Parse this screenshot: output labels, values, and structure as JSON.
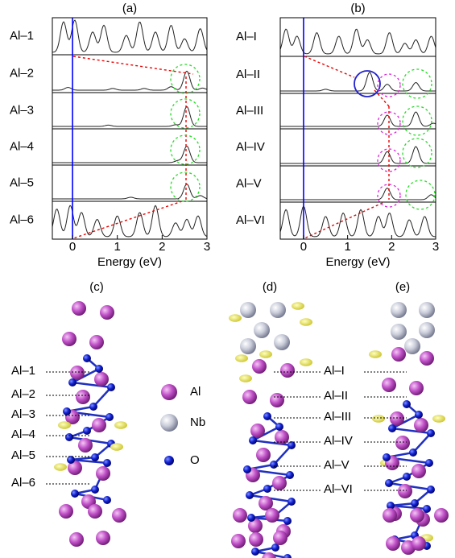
{
  "panels": [
    {
      "label": "(a)",
      "xlabel": "Energy (eV)",
      "xlim": [
        -0.45,
        3
      ],
      "xticks": [
        0,
        1,
        2,
        3
      ],
      "rows": [
        {
          "label": "Al–1",
          "energies": [
            -0.2,
            0.05,
            0.45,
            0.7,
            1.2,
            1.5,
            1.85,
            2.2,
            2.5,
            2.85
          ],
          "heights": [
            0.9,
            0.95,
            0.6,
            0.8,
            0.5,
            0.9,
            0.6,
            0.8,
            0.4,
            0.7
          ]
        },
        {
          "label": "Al–2",
          "energies": [
            -0.1,
            0.9,
            1.6,
            2.2,
            2.55,
            2.9
          ],
          "heights": [
            0.08,
            0.05,
            0.05,
            0.1,
            0.55,
            0.06
          ]
        },
        {
          "label": "Al–3",
          "energies": [
            0.8,
            2.3,
            2.55
          ],
          "heights": [
            0.04,
            0.05,
            0.6
          ]
        },
        {
          "label": "Al–4",
          "energies": [
            2.35,
            2.55
          ],
          "heights": [
            0.06,
            0.5
          ]
        },
        {
          "label": "Al–5",
          "energies": [
            1.3,
            2.55,
            2.85
          ],
          "heights": [
            0.05,
            0.45,
            0.1
          ]
        },
        {
          "label": "Al–6",
          "energies": [
            -0.35,
            -0.05,
            0.2,
            0.55,
            1.0,
            1.5,
            1.85,
            2.3,
            2.55,
            2.8
          ],
          "heights": [
            0.8,
            0.9,
            0.7,
            0.5,
            0.6,
            0.7,
            0.9,
            0.4,
            0.5,
            0.6
          ]
        }
      ]
    },
    {
      "label": "(b)",
      "xlabel": "Energy (eV)",
      "xlim": [
        -0.53,
        3
      ],
      "xticks": [
        0,
        1,
        2,
        3
      ],
      "rows": [
        {
          "label": "Al–I",
          "energies": [
            -0.4,
            -0.15,
            0.3,
            0.8,
            1.2,
            1.45,
            1.95,
            2.3,
            2.55,
            2.9
          ],
          "heights": [
            0.7,
            0.5,
            0.6,
            0.5,
            0.7,
            0.4,
            0.6,
            0.3,
            0.4,
            0.5
          ]
        },
        {
          "label": "Al–II",
          "energies": [
            0.5,
            1.5,
            1.9,
            2.55
          ],
          "heights": [
            0.05,
            0.55,
            0.2,
            0.25
          ]
        },
        {
          "label": "Al–III",
          "energies": [
            1.9,
            2.55,
            2.95
          ],
          "heights": [
            0.35,
            0.45,
            0.1
          ]
        },
        {
          "label": "Al–IV",
          "energies": [
            1.9,
            2.55
          ],
          "heights": [
            0.35,
            0.5
          ]
        },
        {
          "label": "Al–V",
          "energies": [
            1.9,
            2.9
          ],
          "heights": [
            0.35,
            0.15
          ]
        },
        {
          "label": "Al–VI",
          "energies": [
            -0.4,
            0,
            0.5,
            0.9,
            1.3,
            1.7,
            1.95,
            2.4,
            2.75
          ],
          "heights": [
            0.8,
            0.9,
            0.6,
            0.7,
            0.8,
            0.6,
            0.7,
            0.5,
            0.6
          ]
        }
      ]
    }
  ],
  "structures": [
    {
      "label": "(c)",
      "atom_labels": [
        "Al–1",
        "Al–2",
        "Al–3",
        "Al–4",
        "Al–5",
        "Al–6"
      ]
    },
    {
      "label": "(d)",
      "atom_labels": [
        "Al–I",
        "Al–II",
        "Al–III",
        "Al–IV",
        "Al–V",
        "Al–VI"
      ]
    },
    {
      "label": "(e)"
    }
  ],
  "legend": [
    "Al",
    "Nb",
    "O"
  ]
}
